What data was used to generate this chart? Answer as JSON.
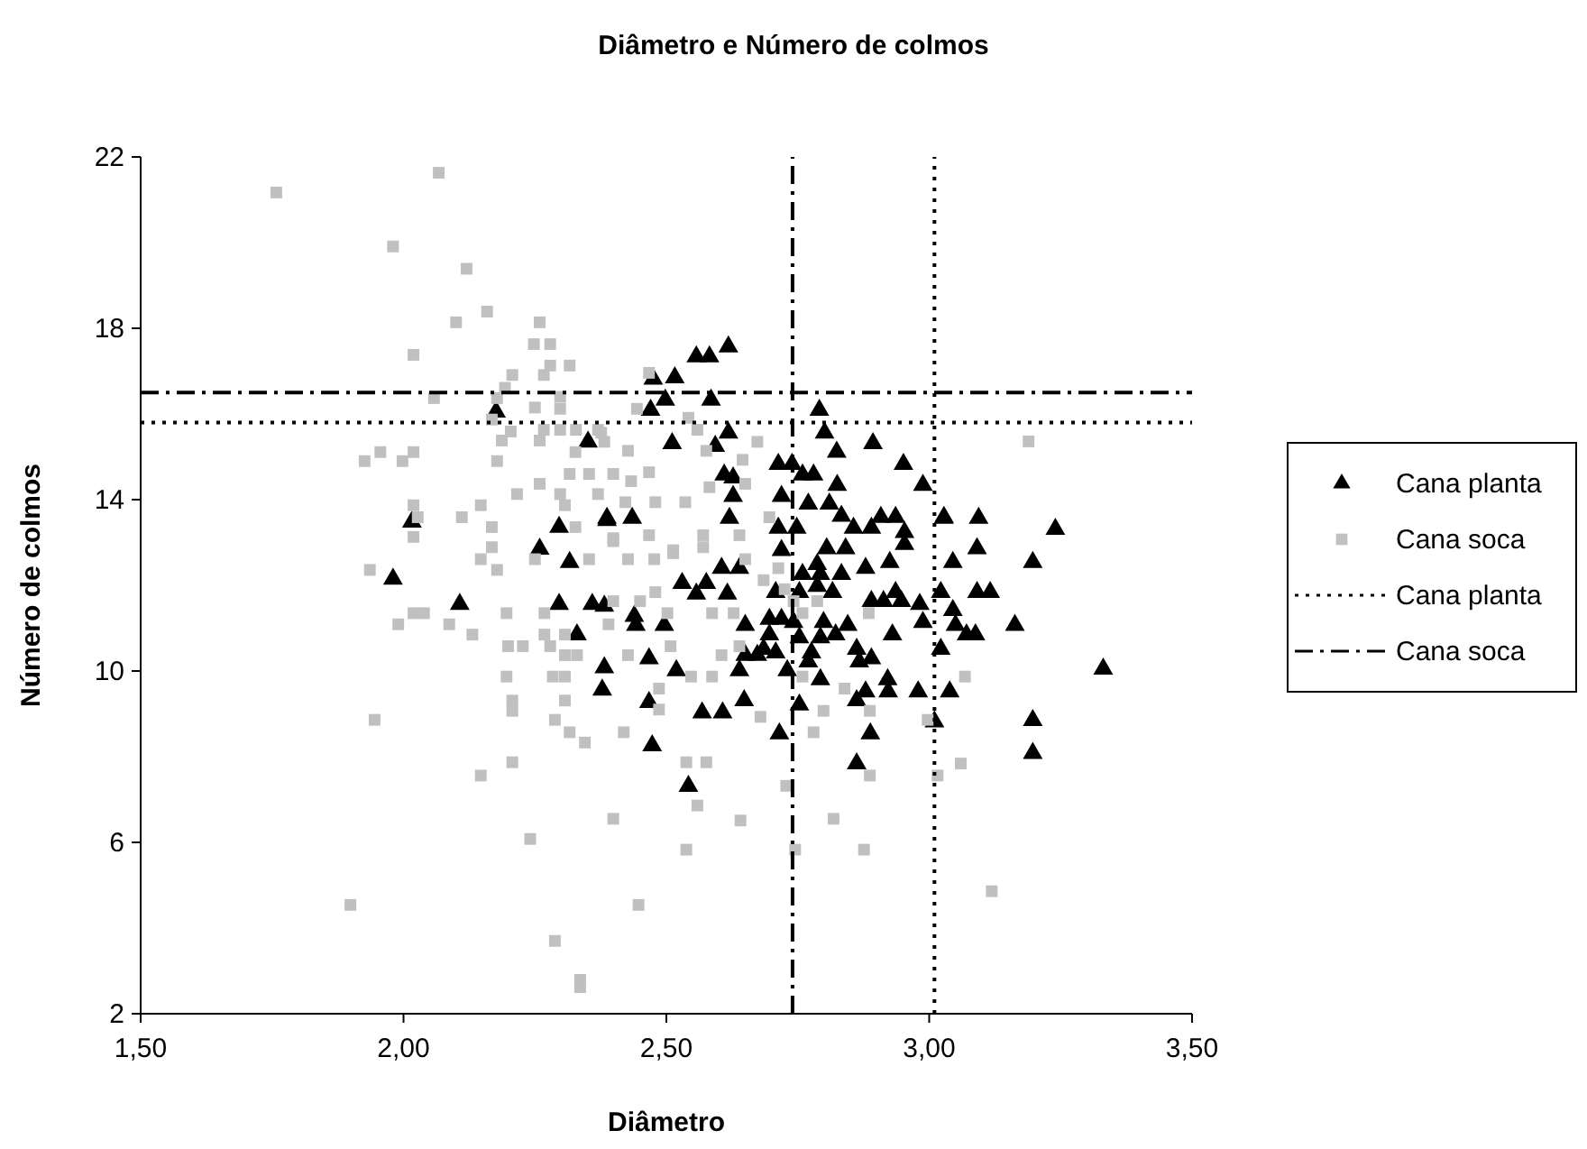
{
  "chart_data": {
    "type": "scatter",
    "title": "Diâmetro e Número de colmos",
    "xlabel": "Diâmetro",
    "ylabel": "Número de colmos",
    "xlim": [
      1.5,
      3.5
    ],
    "xticks": [
      {
        "value": 1.5,
        "label": "1,50"
      },
      {
        "value": 2.0,
        "label": "2,00"
      },
      {
        "value": 2.5,
        "label": "2,50"
      },
      {
        "value": 3.0,
        "label": "3,00"
      },
      {
        "value": 3.5,
        "label": "3,50"
      }
    ],
    "ylim": [
      2,
      22
    ],
    "yticks": [
      2,
      6,
      10,
      14,
      18,
      22
    ],
    "grid": false,
    "legend": "right",
    "series": [
      {
        "name": "Cana planta",
        "color": "#000000",
        "marker": "triangle",
        "x": [
          2.618,
          2.557,
          2.582,
          2.516,
          2.475,
          2.498,
          2.585,
          2.47,
          2.791,
          2.618,
          2.801,
          2.511,
          2.893,
          2.824,
          2.951,
          2.713,
          2.739,
          2.593,
          2.759,
          2.78,
          2.61,
          2.627,
          2.988,
          2.825,
          2.719,
          2.627,
          2.77,
          2.81,
          2.387,
          2.435,
          2.62,
          2.833,
          2.908,
          2.936,
          3.028,
          2.713,
          2.748,
          2.856,
          2.89,
          2.953,
          2.953,
          2.719,
          2.805,
          2.841,
          2.925,
          3.045,
          2.605,
          2.639,
          2.787,
          2.879,
          2.53,
          2.576,
          2.557,
          2.616,
          2.759,
          2.793,
          2.833,
          2.708,
          2.753,
          2.787,
          2.816,
          2.936,
          2.947,
          2.89,
          2.913,
          2.982,
          3.022,
          3.045,
          2.382,
          2.439,
          2.496,
          2.442,
          2.65,
          2.696,
          2.719,
          2.742,
          2.799,
          2.845,
          2.988,
          2.696,
          2.753,
          2.793,
          2.822,
          2.93,
          3.05,
          2.685,
          2.708,
          2.776,
          2.862,
          2.467,
          2.382,
          2.519,
          2.65,
          2.673,
          2.639,
          2.73,
          2.77,
          2.867,
          2.89,
          2.793,
          2.921,
          3.022,
          2.378,
          2.467,
          2.568,
          2.607,
          2.648,
          2.753,
          2.862,
          2.879,
          2.922,
          2.979,
          3.039,
          2.715,
          2.888,
          2.473,
          2.862,
          2.542,
          3.01,
          3.028,
          3.094,
          3.24,
          3.091,
          3.197,
          3.091,
          3.116,
          3.071,
          3.088,
          3.163,
          3.331,
          3.197,
          3.197,
          2.176,
          2.351,
          2.016,
          2.296,
          2.387,
          2.259,
          2.316,
          1.98,
          2.107,
          2.296,
          2.359,
          2.33
        ],
        "values": [
          17.57,
          17.34,
          17.34,
          16.85,
          16.82,
          16.33,
          16.33,
          16.09,
          16.09,
          15.56,
          15.56,
          15.31,
          15.31,
          15.11,
          14.83,
          14.83,
          14.83,
          15.25,
          14.58,
          14.58,
          14.58,
          14.51,
          14.34,
          14.34,
          14.08,
          14.08,
          13.9,
          13.9,
          13.57,
          13.57,
          13.57,
          13.62,
          13.59,
          13.59,
          13.59,
          13.34,
          13.34,
          13.34,
          13.34,
          13.24,
          12.96,
          12.82,
          12.86,
          12.86,
          12.54,
          12.54,
          12.4,
          12.4,
          12.49,
          12.4,
          12.05,
          12.05,
          11.8,
          11.8,
          12.26,
          12.26,
          12.26,
          11.84,
          11.84,
          11.98,
          11.84,
          11.84,
          11.63,
          11.63,
          11.63,
          11.56,
          11.84,
          11.42,
          11.52,
          11.28,
          11.07,
          11.07,
          11.07,
          11.21,
          11.21,
          11.14,
          11.14,
          11.07,
          11.14,
          10.85,
          10.78,
          10.78,
          10.85,
          10.85,
          11.07,
          10.51,
          10.43,
          10.43,
          10.51,
          10.29,
          10.08,
          10.01,
          10.37,
          10.37,
          10.01,
          10.01,
          10.22,
          10.22,
          10.29,
          9.8,
          9.8,
          10.51,
          9.56,
          9.27,
          9.03,
          9.03,
          9.31,
          9.21,
          9.31,
          9.52,
          9.52,
          9.52,
          9.52,
          8.54,
          8.54,
          8.26,
          7.84,
          7.31,
          8.82,
          13.57,
          13.57,
          13.31,
          12.86,
          12.54,
          11.84,
          11.84,
          10.85,
          10.85,
          11.07,
          10.05,
          8.85,
          8.08,
          16.05,
          15.35,
          13.48,
          13.36,
          13.52,
          12.85,
          12.54,
          12.15,
          11.56,
          11.56,
          11.56,
          10.85
        ]
      },
      {
        "name": "Cana soca",
        "color": "#c0c0c0",
        "marker": "square",
        "x": [
          2.067,
          1.758,
          1.98,
          2.12,
          2.159,
          2.1,
          2.259,
          2.248,
          2.279,
          2.019,
          2.316,
          2.279,
          2.207,
          2.267,
          2.193,
          2.058,
          2.178,
          2.298,
          2.298,
          2.25,
          2.168,
          2.187,
          2.204,
          2.259,
          2.267,
          2.298,
          2.328,
          2.37,
          2.382,
          1.926,
          1.956,
          1.998,
          2.019,
          2.178,
          2.327,
          2.316,
          2.353,
          2.399,
          2.216,
          2.259,
          2.298,
          2.307,
          2.37,
          2.019,
          2.027,
          2.019,
          2.111,
          2.147,
          2.168,
          2.168,
          2.327,
          1.936,
          2.147,
          2.178,
          2.25,
          2.353,
          2.399,
          1.99,
          2.019,
          2.039,
          2.087,
          2.131,
          2.196,
          2.268,
          2.199,
          2.227,
          2.268,
          2.279,
          2.307,
          2.399,
          2.39,
          2.196,
          2.207,
          2.207,
          2.284,
          2.307,
          2.33,
          2.307,
          2.307,
          2.288,
          2.316,
          2.345,
          2.419,
          1.945,
          2.207,
          2.147,
          2.399,
          2.241,
          1.899,
          2.288,
          2.336,
          2.336,
          2.538,
          2.576,
          2.559,
          2.641,
          2.538,
          2.447,
          2.728,
          2.745,
          2.818,
          2.876,
          2.887,
          3.016,
          2.78,
          2.799,
          2.887,
          2.679,
          2.839,
          2.997,
          2.759,
          2.486,
          2.486,
          2.587,
          2.547,
          2.427,
          2.508,
          2.605,
          2.639,
          2.502,
          2.587,
          2.628,
          2.45,
          2.479,
          2.685,
          2.725,
          2.742,
          2.759,
          2.885,
          2.787,
          2.427,
          2.477,
          2.513,
          2.57,
          2.65,
          2.713,
          2.467,
          2.444,
          2.542,
          2.559,
          2.376,
          2.673,
          2.576,
          2.427,
          2.645,
          2.467,
          2.433,
          2.65,
          2.582,
          2.536,
          2.479,
          2.422,
          2.696,
          2.57,
          2.639,
          2.467,
          2.399,
          2.513,
          3.189,
          3.068,
          3.06,
          3.119
        ],
        "values": [
          21.63,
          21.17,
          19.91,
          19.39,
          18.39,
          18.14,
          18.14,
          17.63,
          17.63,
          17.38,
          17.13,
          17.13,
          16.91,
          16.91,
          16.61,
          16.37,
          16.37,
          16.4,
          16.12,
          16.15,
          15.87,
          15.38,
          15.59,
          15.38,
          15.63,
          15.63,
          15.63,
          15.63,
          15.35,
          14.9,
          15.11,
          14.9,
          15.11,
          14.9,
          15.11,
          14.6,
          14.6,
          14.6,
          14.13,
          14.37,
          14.13,
          13.87,
          14.13,
          13.87,
          13.59,
          13.13,
          13.59,
          13.87,
          13.36,
          12.89,
          13.36,
          12.36,
          12.61,
          12.36,
          12.61,
          12.61,
          13.1,
          11.09,
          11.35,
          11.35,
          11.09,
          10.85,
          11.35,
          11.35,
          10.58,
          10.58,
          10.85,
          10.58,
          10.85,
          11.63,
          11.09,
          9.87,
          9.31,
          9.07,
          9.87,
          9.87,
          10.37,
          10.37,
          9.31,
          8.86,
          8.57,
          8.33,
          8.57,
          8.86,
          7.87,
          7.56,
          6.55,
          6.08,
          4.54,
          3.7,
          2.79,
          2.62,
          7.87,
          7.87,
          6.86,
          6.51,
          5.83,
          4.54,
          7.32,
          5.83,
          6.55,
          5.83,
          7.56,
          7.56,
          8.57,
          9.07,
          9.07,
          8.93,
          9.59,
          8.86,
          9.87,
          9.59,
          9.1,
          9.87,
          9.87,
          10.37,
          10.58,
          10.37,
          10.58,
          11.35,
          11.35,
          11.35,
          11.63,
          11.84,
          12.12,
          11.91,
          11.63,
          11.35,
          11.35,
          11.63,
          12.61,
          12.61,
          12.82,
          12.89,
          12.61,
          12.4,
          16.96,
          16.12,
          15.91,
          15.63,
          15.56,
          15.35,
          15.14,
          15.14,
          14.93,
          14.64,
          14.43,
          14.37,
          14.29,
          13.94,
          13.94,
          13.94,
          13.59,
          13.17,
          13.17,
          13.17,
          13.03,
          12.75,
          15.36,
          9.87,
          7.84,
          4.86
        ]
      }
    ],
    "ref_lines": [
      {
        "axis": "y",
        "value": 15.8,
        "label": "Cana planta",
        "line_style": "dotted",
        "color": "#000000"
      },
      {
        "axis": "x",
        "value": 3.01,
        "line_style": "dotted",
        "color": "#000000"
      },
      {
        "axis": "y",
        "value": 16.5,
        "label": "Cana soca",
        "line_style": "dashdot",
        "color": "#000000"
      },
      {
        "axis": "x",
        "value": 2.74,
        "line_style": "dashdot",
        "color": "#000000"
      }
    ]
  }
}
